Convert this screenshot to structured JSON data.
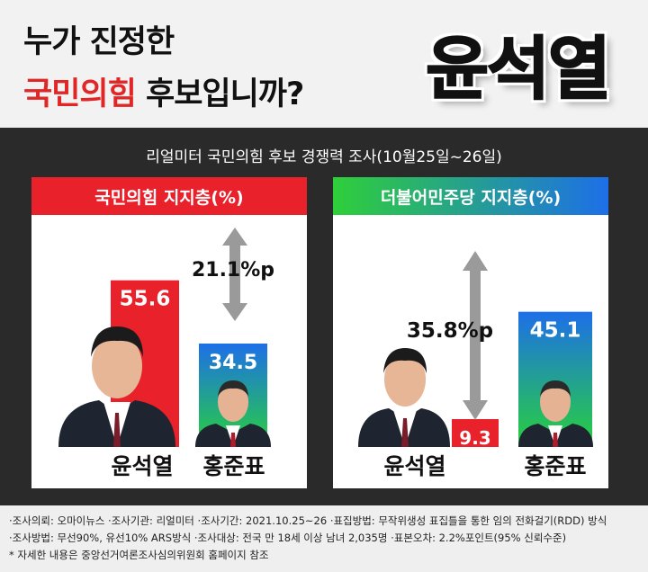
{
  "header": {
    "line1": "누가 진정한",
    "line2_red": "국민의힘",
    "line2_rest": " 후보입니까?",
    "answer": "윤석열"
  },
  "subtitle": "리얼미터 국민의힘 후보 경쟁력 조사(10월25일~26일)",
  "colors": {
    "red": "#e8212b",
    "dark_bg": "#2a2a2a",
    "grad_green": "#28d13c",
    "grad_blue": "#1d6fe8",
    "arrow": "#9a9a9a"
  },
  "chart_data": [
    {
      "type": "bar",
      "title": "국민의힘 지지층(%)",
      "categories": [
        "윤석열",
        "홍준표"
      ],
      "values": [
        55.6,
        34.5
      ],
      "gap_label": "21.1%p",
      "ylim": [
        0,
        60
      ]
    },
    {
      "type": "bar",
      "title": "더불어민주당 지지층(%)",
      "categories": [
        "윤석열",
        "홍준표"
      ],
      "values": [
        9.3,
        45.1
      ],
      "gap_label": "35.8%p",
      "ylim": [
        0,
        60
      ]
    }
  ],
  "footnotes": [
    "·조사의뢰: 오마이뉴스  ·조사기관: 리얼미터  ·조사기간: 2021.10.25~26  ·표집방법: 무작위생성 표집틀을 통한 임의 전화걸기(RDD) 방식",
    "·조사방법: 무선90%, 유선10% ARS방식  ·조사대상: 전국 만 18세 이상 남녀 2,035명  ·표본오차: 2.2%포인트(95% 신뢰수준)",
    "* 자세한 내용은 중앙선거여론조사심의위원회 홈페이지 참조"
  ]
}
